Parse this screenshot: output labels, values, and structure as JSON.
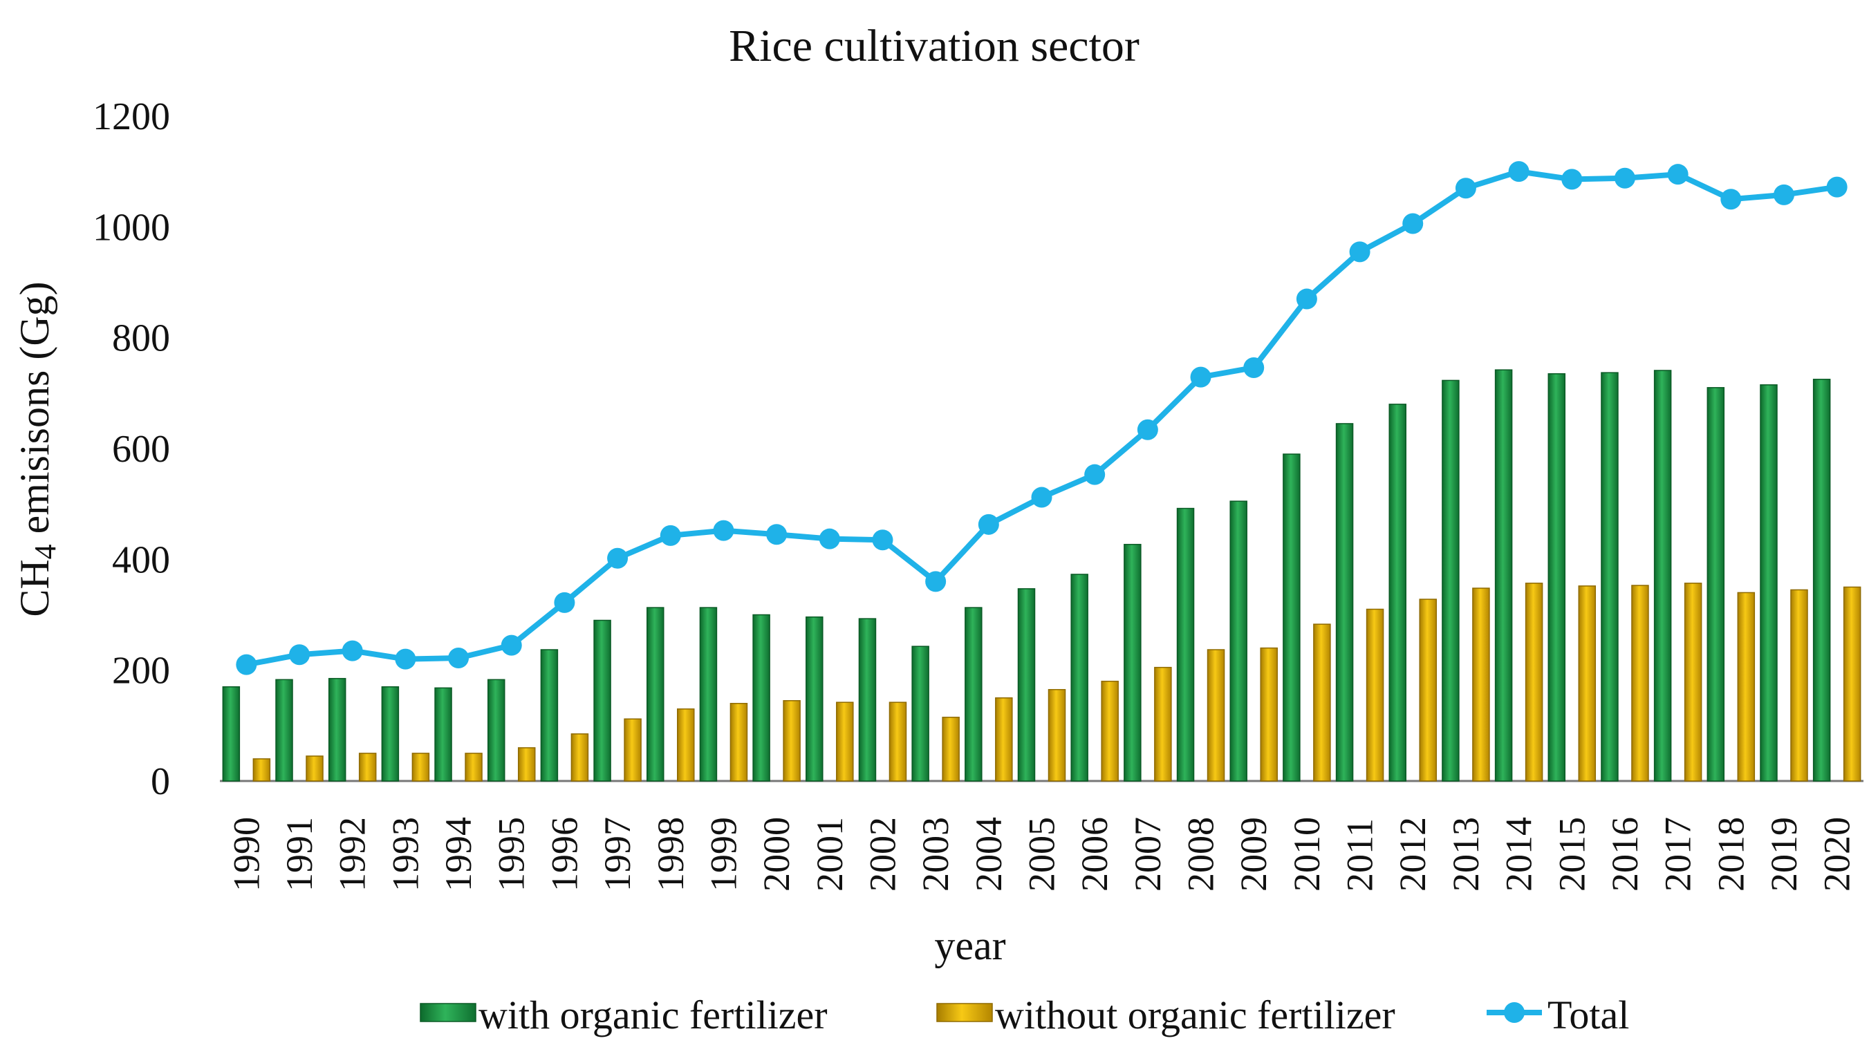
{
  "chart_data": {
    "type": "bar",
    "title": "Rice cultivation sector",
    "xlabel": "year",
    "ylabel_main": "CH",
    "ylabel_sub": "4",
    "ylabel_rest": " emisisons (Gg)",
    "ylim": [
      0,
      1200
    ],
    "yticks": [
      0,
      200,
      400,
      600,
      800,
      1000,
      1200
    ],
    "grid": false,
    "legend_position": "bottom",
    "categories": [
      "1990",
      "1991",
      "1992",
      "1993",
      "1994",
      "1995",
      "1996",
      "1997",
      "1998",
      "1999",
      "2000",
      "2001",
      "2002",
      "2003",
      "2004",
      "2005",
      "2006",
      "2007",
      "2008",
      "2009",
      "2010",
      "2011",
      "2012",
      "2013",
      "2014",
      "2015",
      "2016",
      "2017",
      "2018",
      "2019",
      "2020"
    ],
    "series": [
      {
        "name": "with organic fertilizer",
        "kind": "bar",
        "color": "#1e8f45",
        "values": [
          170,
          183,
          185,
          170,
          168,
          183,
          237,
          290,
          313,
          313,
          300,
          296,
          293,
          243,
          313,
          347,
          373,
          427,
          492,
          505,
          590,
          645,
          680,
          723,
          742,
          735,
          737,
          741,
          710,
          715,
          725
        ]
      },
      {
        "name": "without organic fertilizer",
        "kind": "bar",
        "color": "#e0b000",
        "values": [
          40,
          45,
          50,
          50,
          50,
          60,
          85,
          112,
          130,
          140,
          145,
          142,
          142,
          115,
          150,
          165,
          180,
          205,
          237,
          240,
          283,
          310,
          328,
          348,
          357,
          352,
          353,
          357,
          340,
          345,
          350
        ]
      },
      {
        "name": "Total",
        "kind": "line",
        "color": "#1fb2e8",
        "values": [
          210,
          228,
          235,
          220,
          222,
          245,
          322,
          402,
          443,
          452,
          445,
          437,
          435,
          360,
          463,
          512,
          553,
          634,
          729,
          746,
          870,
          955,
          1006,
          1070,
          1100,
          1086,
          1088,
          1095,
          1050,
          1058,
          1072
        ]
      }
    ]
  }
}
